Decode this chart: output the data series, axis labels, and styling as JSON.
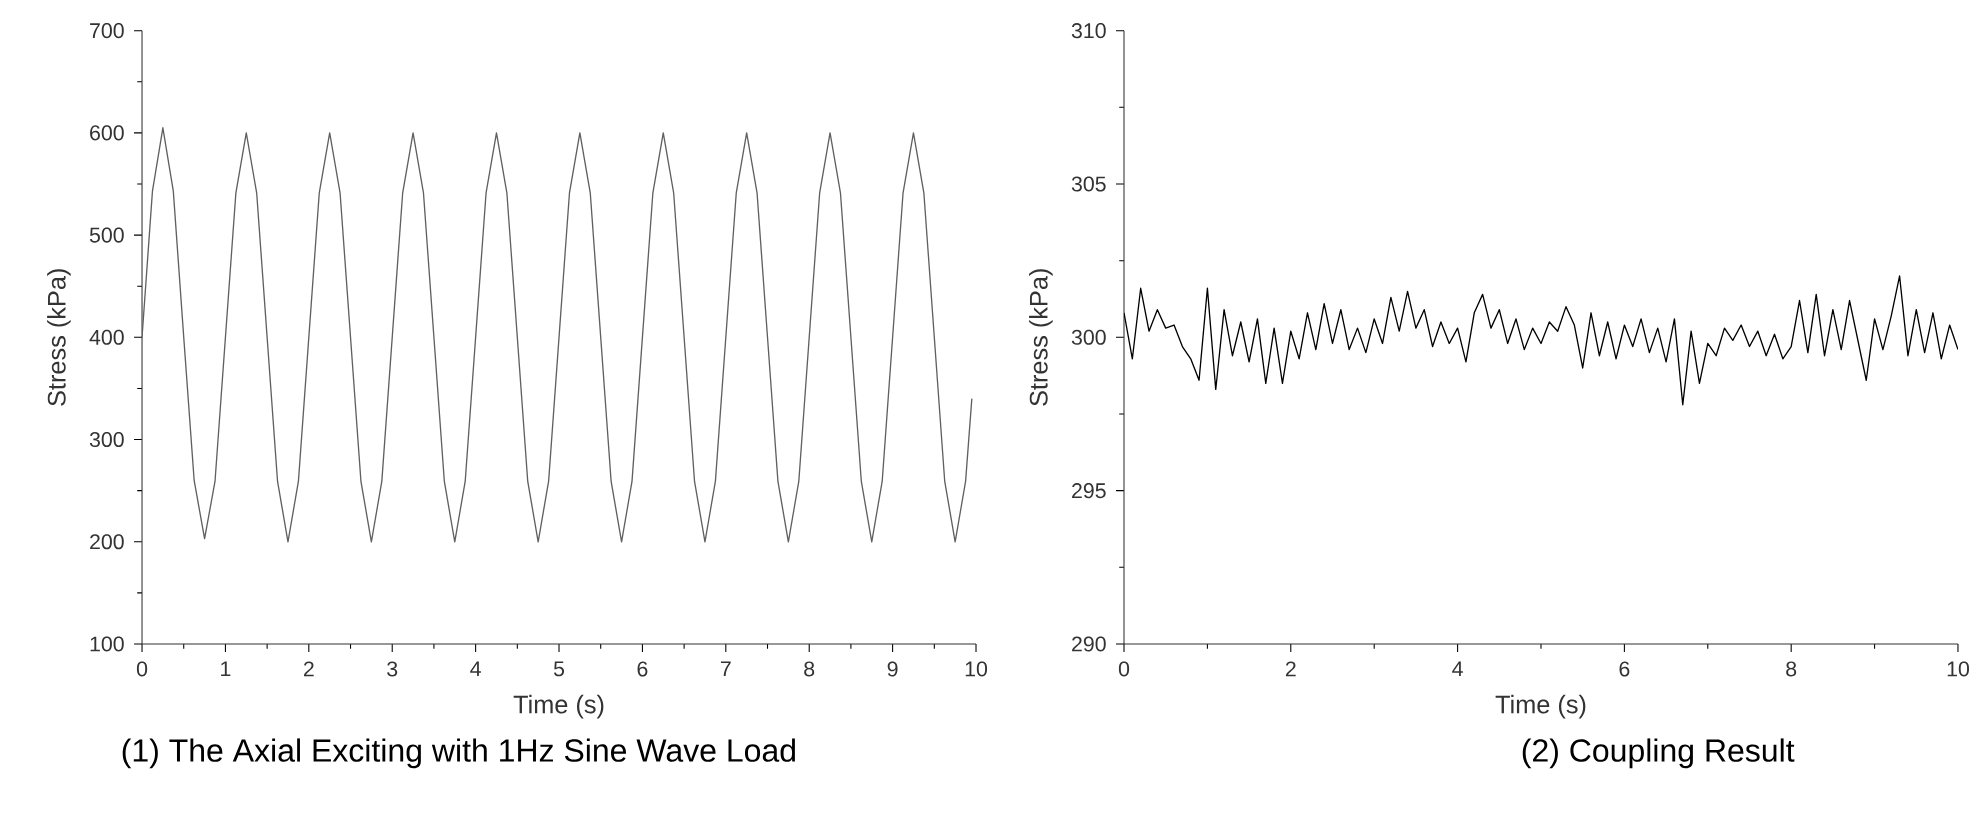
{
  "chart_data": [
    {
      "type": "line",
      "title": "(1) The Axial Exciting with 1Hz Sine Wave Load",
      "xlabel": "Time (s)",
      "ylabel": "Stress (kPa)",
      "xlim": [
        0,
        10
      ],
      "ylim": [
        100,
        700
      ],
      "xticks": [
        0,
        1,
        2,
        3,
        4,
        5,
        6,
        7,
        8,
        9,
        10
      ],
      "yticks": [
        100,
        200,
        300,
        400,
        500,
        600,
        700
      ],
      "grid": false,
      "marker": "none",
      "line_style": "solid",
      "series": [
        {
          "color": "#606060",
          "x": [
            0,
            0.125,
            0.25,
            0.375,
            0.5,
            0.625,
            0.75,
            0.875,
            1,
            1.125,
            1.25,
            1.375,
            1.5,
            1.625,
            1.75,
            1.875,
            2,
            2.125,
            2.25,
            2.375,
            2.5,
            2.625,
            2.75,
            2.875,
            3,
            3.125,
            3.25,
            3.375,
            3.5,
            3.625,
            3.75,
            3.875,
            4,
            4.125,
            4.25,
            4.375,
            4.5,
            4.625,
            4.75,
            4.875,
            5,
            5.125,
            5.25,
            5.375,
            5.5,
            5.625,
            5.75,
            5.875,
            6,
            6.125,
            6.25,
            6.375,
            6.5,
            6.625,
            6.75,
            6.875,
            7,
            7.125,
            7.25,
            7.375,
            7.5,
            7.625,
            7.75,
            7.875,
            8,
            8.125,
            8.25,
            8.375,
            8.5,
            8.625,
            8.75,
            8.875,
            9,
            9.125,
            9.25,
            9.375,
            9.5,
            9.625,
            9.75,
            9.875,
            9.95
          ],
          "values": [
            400,
            543,
            605,
            543,
            400,
            260,
            203,
            259,
            400,
            541,
            600,
            541,
            400,
            259,
            200,
            259,
            400,
            541,
            600,
            541,
            400,
            259,
            200,
            259,
            400,
            541,
            600,
            541,
            400,
            259,
            200,
            259,
            400,
            541,
            600,
            541,
            400,
            259,
            200,
            259,
            400,
            541,
            600,
            541,
            400,
            259,
            200,
            259,
            400,
            541,
            600,
            541,
            400,
            259,
            200,
            259,
            400,
            541,
            600,
            541,
            400,
            259,
            200,
            259,
            400,
            541,
            600,
            541,
            400,
            259,
            200,
            259,
            400,
            541,
            600,
            541,
            400,
            259,
            200,
            259,
            340
          ]
        }
      ]
    },
    {
      "type": "line",
      "title": "(2) Coupling Result",
      "xlabel": "Time (s)",
      "ylabel": "Stress (kPa)",
      "xlim": [
        0,
        10
      ],
      "ylim": [
        290,
        310
      ],
      "xticks": [
        0,
        2,
        4,
        6,
        8,
        10
      ],
      "yticks": [
        290,
        295,
        300,
        305,
        310
      ],
      "grid": false,
      "marker": "none",
      "line_style": "solid",
      "series": [
        {
          "color": "#000000",
          "x": [
            0,
            0.1,
            0.2,
            0.3,
            0.4,
            0.5,
            0.6,
            0.7,
            0.8,
            0.9,
            1.0,
            1.1,
            1.2,
            1.3,
            1.4,
            1.5,
            1.6,
            1.7,
            1.8,
            1.9,
            2.0,
            2.1,
            2.2,
            2.3,
            2.4,
            2.5,
            2.6,
            2.7,
            2.8,
            2.9,
            3.0,
            3.1,
            3.2,
            3.3,
            3.4,
            3.5,
            3.6,
            3.7,
            3.8,
            3.9,
            4.0,
            4.1,
            4.2,
            4.3,
            4.4,
            4.5,
            4.6,
            4.7,
            4.8,
            4.9,
            5.0,
            5.1,
            5.2,
            5.3,
            5.4,
            5.5,
            5.6,
            5.7,
            5.8,
            5.9,
            6.0,
            6.1,
            6.2,
            6.3,
            6.4,
            6.5,
            6.6,
            6.7,
            6.8,
            6.9,
            7.0,
            7.1,
            7.2,
            7.3,
            7.4,
            7.5,
            7.6,
            7.7,
            7.8,
            7.9,
            8.0,
            8.1,
            8.2,
            8.3,
            8.4,
            8.5,
            8.6,
            8.7,
            8.8,
            8.9,
            9.0,
            9.1,
            9.2,
            9.3,
            9.4,
            9.5,
            9.6,
            9.7,
            9.8,
            9.9,
            10.0
          ],
          "values": [
            300.8,
            299.3,
            301.6,
            300.2,
            300.9,
            300.3,
            300.4,
            299.7,
            299.3,
            298.6,
            301.6,
            298.3,
            300.9,
            299.4,
            300.5,
            299.2,
            300.6,
            298.5,
            300.3,
            298.5,
            300.2,
            299.3,
            300.8,
            299.6,
            301.1,
            299.8,
            300.9,
            299.6,
            300.3,
            299.5,
            300.6,
            299.8,
            301.3,
            300.2,
            301.5,
            300.3,
            300.9,
            299.7,
            300.5,
            299.8,
            300.3,
            299.2,
            300.8,
            301.4,
            300.3,
            300.9,
            299.8,
            300.6,
            299.6,
            300.3,
            299.8,
            300.5,
            300.2,
            301.0,
            300.4,
            299.0,
            300.8,
            299.4,
            300.5,
            299.3,
            300.4,
            299.7,
            300.6,
            299.5,
            300.3,
            299.2,
            300.6,
            297.8,
            300.2,
            298.5,
            299.8,
            299.4,
            300.3,
            299.9,
            300.4,
            299.7,
            300.2,
            299.4,
            300.1,
            299.3,
            299.7,
            301.2,
            299.5,
            301.4,
            299.4,
            300.9,
            299.6,
            301.2,
            299.9,
            298.6,
            300.6,
            299.6,
            300.7,
            302.0,
            299.4,
            300.9,
            299.5,
            300.8,
            299.3,
            300.4,
            299.6
          ]
        }
      ]
    }
  ]
}
